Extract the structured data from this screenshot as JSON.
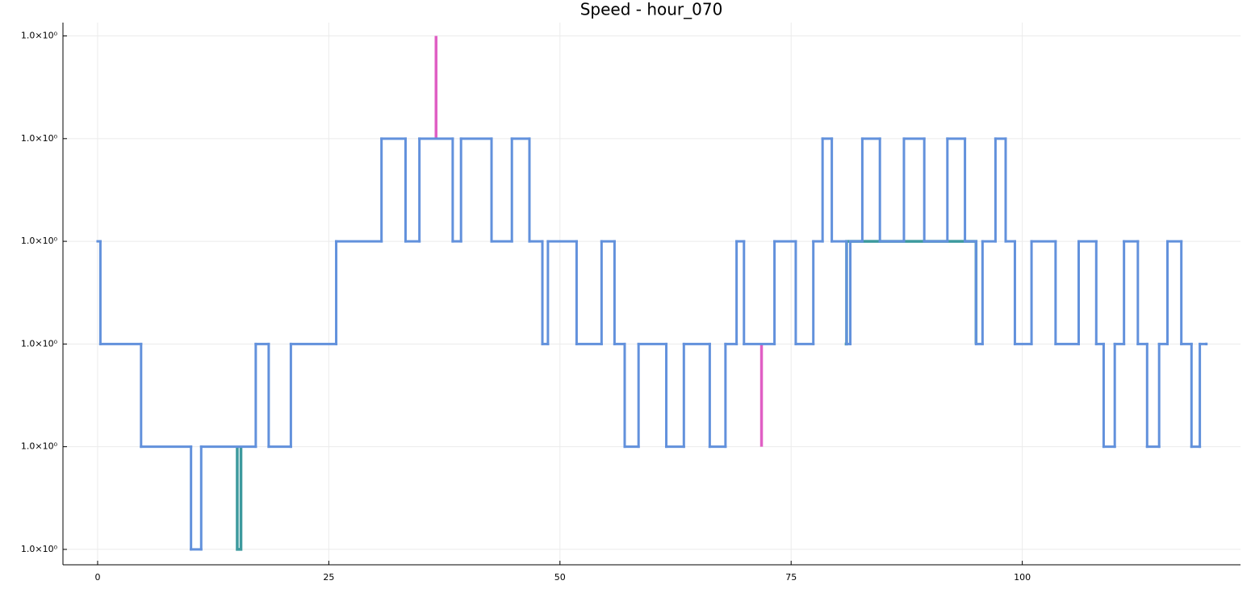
{
  "chart_data": {
    "type": "line",
    "title": "Speed - hour_070",
    "xlim": [
      -3.75,
      123.6
    ],
    "xticks": [
      0,
      25,
      50,
      75,
      100
    ],
    "ylim": [
      0.99999685,
      1.00000213
    ],
    "yticks": [
      {
        "value": 0.999997,
        "label": "1.0×10⁰"
      },
      {
        "value": 0.999998,
        "label": "1.0×10⁰"
      },
      {
        "value": 0.999999,
        "label": "1.0×10⁰"
      },
      {
        "value": 1.0,
        "label": "1.0×10⁰"
      },
      {
        "value": 1.000001,
        "label": "1.0×10⁰"
      },
      {
        "value": 1.000002,
        "label": "1.0×10⁰"
      }
    ],
    "grid": true,
    "series": [
      {
        "color": "#3d9a9e",
        "step": false,
        "x": [
          15.1,
          15.1,
          15.5,
          15.5,
          80.8,
          80.8,
          81.0,
          81.0,
          95.0,
          95.0
        ],
        "values": [
          0.999998,
          0.999997,
          0.999997,
          0.999998,
          null,
          0.999999,
          0.999999,
          1.0,
          1.0,
          0.999999
        ]
      },
      {
        "color": "#e05fc4",
        "step": false,
        "x": [
          36.6,
          36.6,
          36.6,
          71.8,
          71.8
        ],
        "values": [
          1.000001,
          1.000002,
          null,
          0.999999,
          0.999998
        ]
      },
      {
        "color": "#6291dc",
        "step": true,
        "x": [
          0,
          0.3,
          4.7,
          10.1,
          11.2,
          17.1,
          18.5,
          20.9,
          25.8,
          30.7,
          33.3,
          34.8,
          38.4,
          39.3,
          42.6,
          44.8,
          46.7,
          48.1,
          48.7,
          51.8,
          54.5,
          55.9,
          57.0,
          58.5,
          61.5,
          63.4,
          66.2,
          67.9,
          69.1,
          69.9,
          73.2,
          75.5,
          77.4,
          78.4,
          79.4,
          81.0,
          81.4,
          82.7,
          84.6,
          87.2,
          89.4,
          91.9,
          93.8,
          95.0,
          95.7,
          97.1,
          98.2,
          99.2,
          101.0,
          103.6,
          106.1,
          108.0,
          108.8,
          110.0,
          111.0,
          112.5,
          113.5,
          114.8,
          115.7,
          117.2,
          118.3,
          119.2,
          119.9
        ],
        "values": [
          1.0,
          0.999999,
          0.999998,
          0.999997,
          0.999998,
          0.999999,
          0.999998,
          0.999999,
          1.0,
          1.000001,
          1.0,
          1.000001,
          1.0,
          1.000001,
          1.0,
          1.000001,
          1.0,
          0.999999,
          1.0,
          0.999999,
          1.0,
          0.999999,
          0.999998,
          0.999999,
          0.999998,
          0.999999,
          0.999998,
          0.999999,
          1.0,
          0.999999,
          1.0,
          0.999999,
          1.0,
          1.000001,
          1.0,
          0.999999,
          1.0,
          1.000001,
          1.0,
          1.000001,
          1.0,
          1.000001,
          1.0,
          0.999999,
          1.0,
          1.000001,
          1.0,
          0.999999,
          1.0,
          0.999999,
          1.0,
          0.999999,
          0.999998,
          0.999999,
          1.0,
          0.999999,
          0.999998,
          0.999999,
          1.0,
          0.999999,
          0.999998,
          0.999999,
          0.999999
        ]
      }
    ]
  }
}
